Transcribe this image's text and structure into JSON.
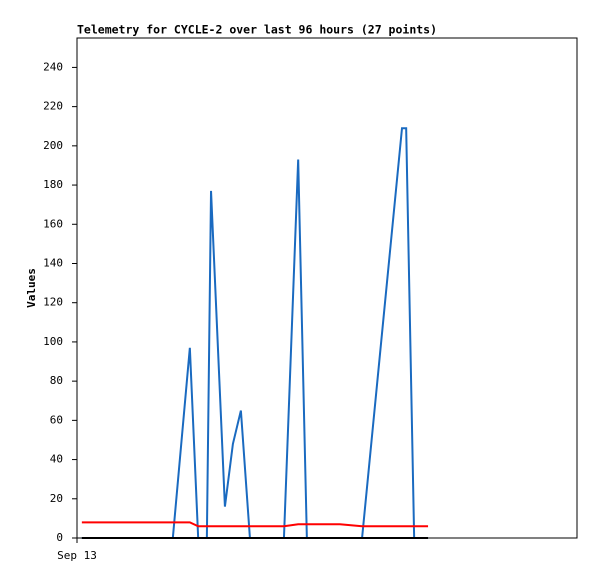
{
  "chart_data": {
    "type": "line",
    "title": "Telemetry for CYCLE-2 over last 96 hours (27 points)",
    "y_label": "Values",
    "x": [
      1.4,
      6.6,
      12.4,
      18.1,
      23.9,
      27.6,
      32.5,
      34.9,
      37.4,
      38.6,
      42.6,
      44.9,
      47.2,
      49.8,
      54.1,
      59.6,
      63.7,
      66.2,
      70.0,
      75.7,
      82.1,
      93.6,
      94.8,
      97.1,
      98.8,
      100.2,
      101.1
    ],
    "series": [
      {
        "color": "#1a6ac0",
        "values": [
          0,
          0,
          0,
          0,
          0,
          0,
          97,
          0,
          0,
          177,
          16,
          48,
          65,
          0,
          0,
          0,
          193,
          0,
          0,
          0,
          0,
          209,
          209,
          0,
          0,
          0,
          0
        ]
      },
      {
        "color": "#ff0000",
        "values": [
          8,
          8,
          8,
          8,
          8,
          8,
          8,
          6,
          6,
          6,
          6,
          6,
          6,
          6,
          6,
          6,
          7,
          7,
          7,
          7,
          6,
          6,
          6,
          6,
          6,
          6,
          6
        ]
      },
      {
        "color": "#000000",
        "values": [
          0,
          0,
          0,
          0,
          0,
          0,
          0,
          0,
          0,
          0,
          0,
          0,
          0,
          0,
          0,
          0,
          0,
          0,
          0,
          0,
          0,
          0,
          0,
          0,
          0,
          0,
          0
        ]
      }
    ],
    "xlim": [
      0,
      144
    ],
    "xticks": [
      {
        "value": 0,
        "label": "Sep 13"
      }
    ],
    "ylim": [
      0,
      255
    ],
    "yticks": [
      0,
      20,
      40,
      60,
      80,
      100,
      120,
      140,
      160,
      180,
      200,
      220,
      240
    ],
    "grid": false
  }
}
